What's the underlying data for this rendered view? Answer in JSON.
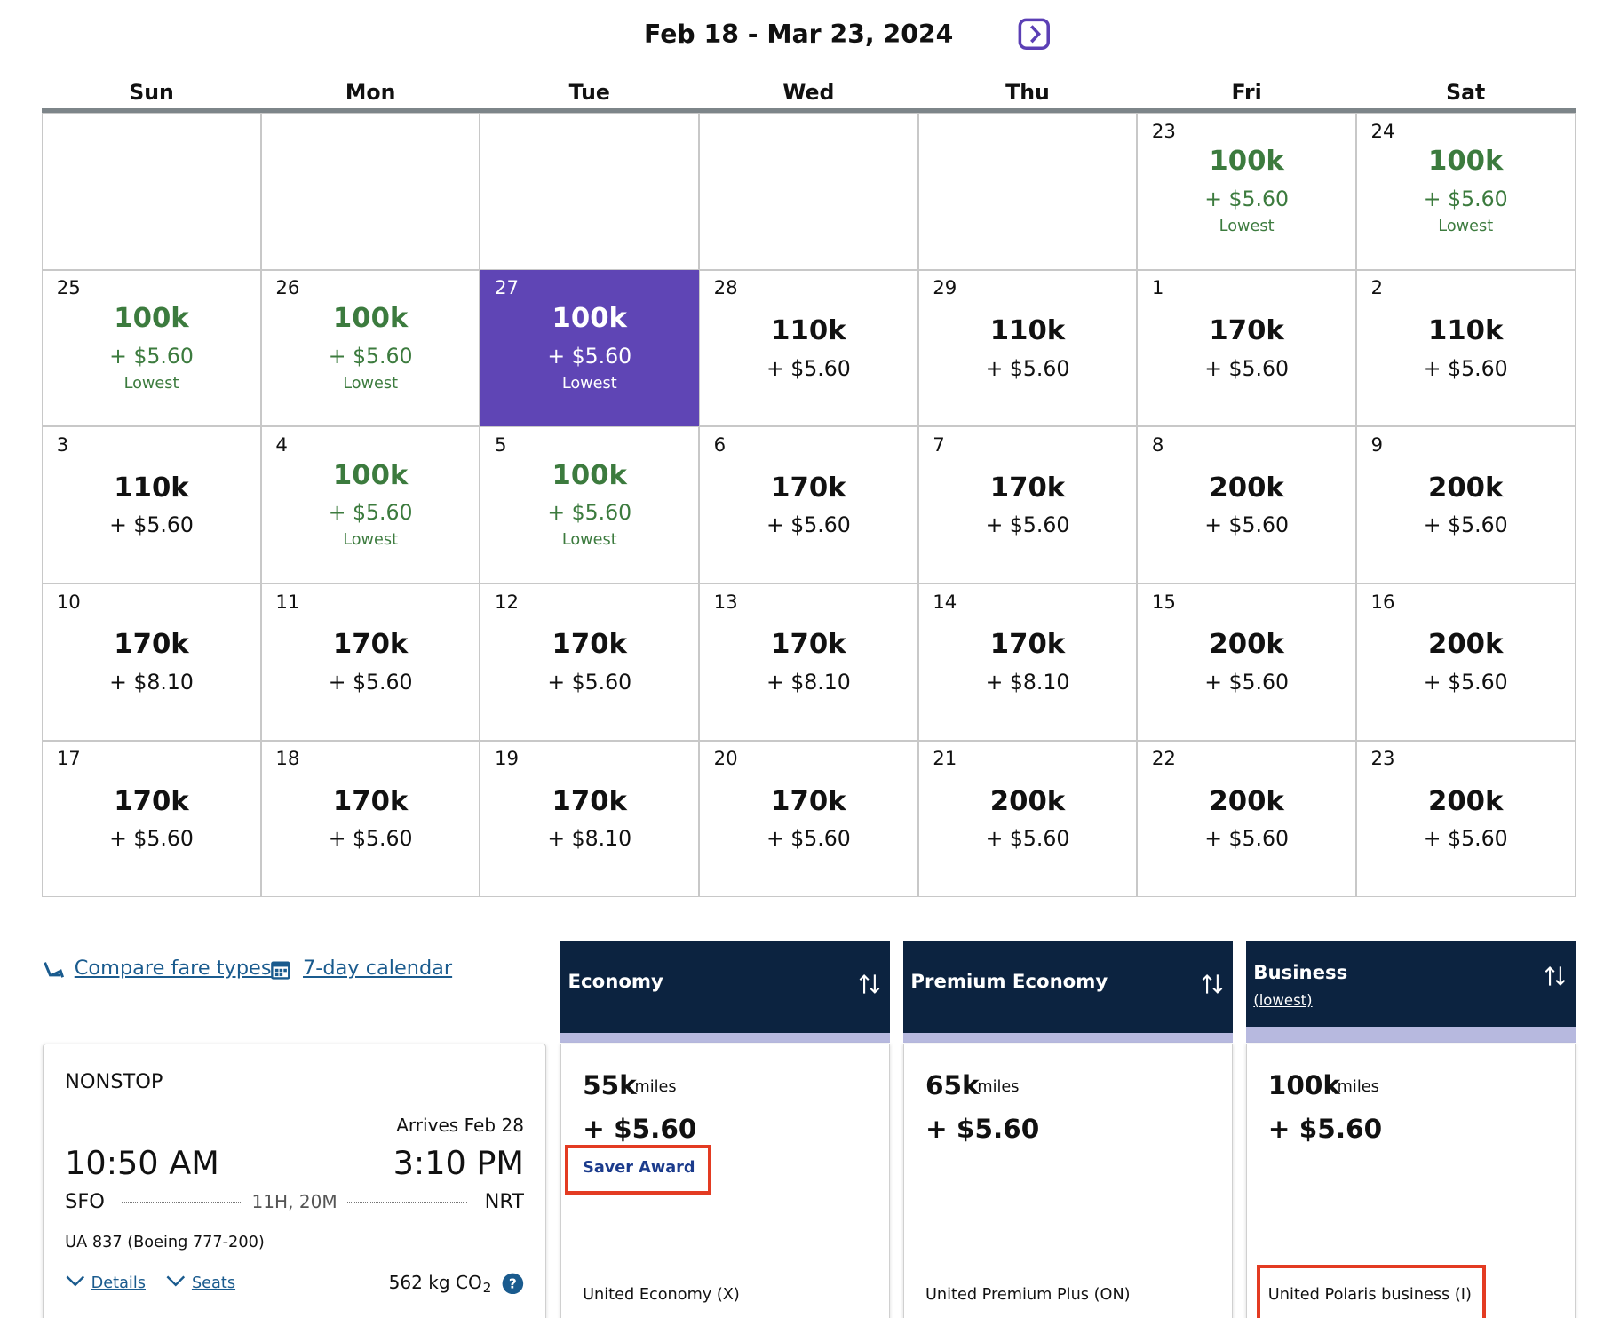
{
  "header": {
    "title": "Feb 18 - Mar 23, 2024"
  },
  "calendar": {
    "weekdays": [
      "Sun",
      "Mon",
      "Tue",
      "Wed",
      "Thu",
      "Fri",
      "Sat"
    ],
    "weeks": [
      [
        {
          "day": "23",
          "miles": "100k",
          "fee": "+ $5.60",
          "note": "Lowest"
        },
        {
          "day": "24",
          "miles": "100k",
          "fee": "+ $5.60",
          "note": "Lowest"
        }
      ],
      [
        {
          "day": "25",
          "miles": "100k",
          "fee": "+ $5.60",
          "note": "Lowest"
        },
        {
          "day": "26",
          "miles": "100k",
          "fee": "+ $5.60",
          "note": "Lowest"
        },
        {
          "day": "27",
          "miles": "100k",
          "fee": "+ $5.60",
          "note": "Lowest",
          "selected": true
        },
        {
          "day": "28",
          "miles": "110k",
          "fee": "+ $5.60"
        },
        {
          "day": "29",
          "miles": "110k",
          "fee": "+ $5.60"
        },
        {
          "day": "1",
          "miles": "170k",
          "fee": "+ $5.60"
        },
        {
          "day": "2",
          "miles": "110k",
          "fee": "+ $5.60"
        }
      ],
      [
        {
          "day": "3",
          "miles": "110k",
          "fee": "+ $5.60"
        },
        {
          "day": "4",
          "miles": "100k",
          "fee": "+ $5.60",
          "note": "Lowest"
        },
        {
          "day": "5",
          "miles": "100k",
          "fee": "+ $5.60",
          "note": "Lowest"
        },
        {
          "day": "6",
          "miles": "170k",
          "fee": "+ $5.60"
        },
        {
          "day": "7",
          "miles": "170k",
          "fee": "+ $5.60"
        },
        {
          "day": "8",
          "miles": "200k",
          "fee": "+ $5.60"
        },
        {
          "day": "9",
          "miles": "200k",
          "fee": "+ $5.60"
        }
      ],
      [
        {
          "day": "10",
          "miles": "170k",
          "fee": "+ $8.10"
        },
        {
          "day": "11",
          "miles": "170k",
          "fee": "+ $5.60"
        },
        {
          "day": "12",
          "miles": "170k",
          "fee": "+ $5.60"
        },
        {
          "day": "13",
          "miles": "170k",
          "fee": "+ $8.10"
        },
        {
          "day": "14",
          "miles": "170k",
          "fee": "+ $8.10"
        },
        {
          "day": "15",
          "miles": "200k",
          "fee": "+ $5.60"
        },
        {
          "day": "16",
          "miles": "200k",
          "fee": "+ $5.60"
        }
      ],
      [
        {
          "day": "17",
          "miles": "170k",
          "fee": "+ $5.60"
        },
        {
          "day": "18",
          "miles": "170k",
          "fee": "+ $5.60"
        },
        {
          "day": "19",
          "miles": "170k",
          "fee": "+ $8.10"
        },
        {
          "day": "20",
          "miles": "170k",
          "fee": "+ $5.60"
        },
        {
          "day": "21",
          "miles": "200k",
          "fee": "+ $5.60"
        },
        {
          "day": "22",
          "miles": "200k",
          "fee": "+ $5.60"
        },
        {
          "day": "23",
          "miles": "200k",
          "fee": "+ $5.60"
        }
      ]
    ]
  },
  "links": [
    "Compare fare types",
    "7-day calendar"
  ],
  "flight": {
    "stops": "NONSTOP",
    "arrives": "Arrives Feb 28",
    "depart_time": "10:50 AM",
    "arrive_time": "3:10 PM",
    "origin": "SFO",
    "duration": "11H, 20M",
    "destination": "NRT",
    "flight": "UA 837 (Boeing 777-200)",
    "details": "Details",
    "seats": "Seats",
    "emissions": "562 kg CO",
    "emissions_sub": "2"
  },
  "fares": [
    {
      "name": "Economy",
      "miles": "55k",
      "unit": "miles",
      "fee": "+ $5.60",
      "badge": "Saver Award",
      "fare_class": "United Economy (X)"
    },
    {
      "name": "Premium Economy",
      "miles": "65k",
      "unit": "miles",
      "fee": "+ $5.60",
      "fare_class": "United Premium Plus (ON)"
    },
    {
      "name": "Business",
      "sub": "(lowest)",
      "miles": "100k",
      "unit": "miles",
      "fee": "+ $5.60",
      "fare_class": "United Polaris business (I)",
      "highlight_class": true
    }
  ]
}
